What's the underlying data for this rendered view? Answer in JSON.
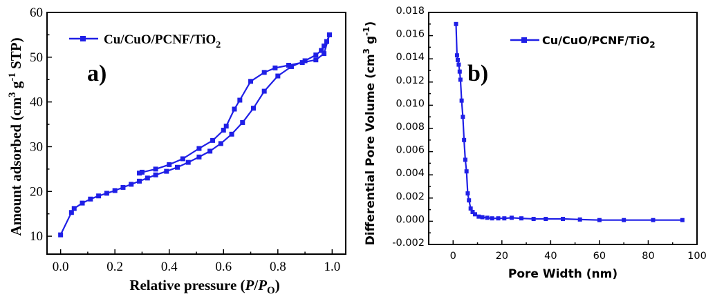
{
  "series_color": "#1f1fe6",
  "chart_data": [
    {
      "id": "a",
      "type": "line",
      "panel_label": "a)",
      "title": "",
      "xlabel": "Relative pressure (P/Po)",
      "xlabel_parts": [
        "Relative pressure (",
        "P",
        "/",
        "P",
        "O",
        ")"
      ],
      "ylabel": "Amount adsorbed (cm3 g-1 STP)",
      "ylabel_parts": [
        "Amount adsorbed (cm",
        "3",
        " g",
        "-1",
        " STP)"
      ],
      "xlim": [
        -0.05,
        1.05
      ],
      "ylim": [
        6,
        60
      ],
      "xticks": [
        "0.0",
        "0.2",
        "0.4",
        "0.6",
        "0.8",
        "1.0"
      ],
      "yticks": [
        "10",
        "20",
        "30",
        "40",
        "50",
        "60"
      ],
      "legend": {
        "label": "Cu/CuO/PCNF/TiO",
        "subscript": "2",
        "position": "top-left"
      },
      "series": [
        {
          "name": "Cu/CuO/PCNF/TiO2",
          "marker": "square",
          "x": [
            0.0,
            0.04,
            0.05,
            0.08,
            0.11,
            0.14,
            0.17,
            0.2,
            0.23,
            0.26,
            0.29,
            0.32,
            0.35,
            0.39,
            0.43,
            0.47,
            0.51,
            0.55,
            0.59,
            0.63,
            0.67,
            0.71,
            0.75,
            0.8,
            0.85,
            0.9,
            0.94,
            0.96,
            0.97,
            0.98,
            0.99,
            0.99,
            0.97,
            0.94,
            0.89,
            0.84,
            0.79,
            0.75,
            0.7,
            0.66,
            0.64,
            0.61,
            0.6,
            0.56,
            0.51,
            0.45,
            0.4,
            0.35,
            0.3,
            0.29
          ],
          "y": [
            10.3,
            15.3,
            16.2,
            17.4,
            18.3,
            19.0,
            19.6,
            20.2,
            20.9,
            21.6,
            22.3,
            23.0,
            23.7,
            24.5,
            25.4,
            26.5,
            27.7,
            29.0,
            30.7,
            32.8,
            35.4,
            38.6,
            42.4,
            45.8,
            47.9,
            49.2,
            50.5,
            51.5,
            52.5,
            53.5,
            55.0,
            55.0,
            50.8,
            49.4,
            48.8,
            48.2,
            47.6,
            46.6,
            44.6,
            40.4,
            38.4,
            34.6,
            33.7,
            31.4,
            29.6,
            27.3,
            26.0,
            25.0,
            24.3,
            24.1
          ]
        }
      ]
    },
    {
      "id": "b",
      "type": "line",
      "panel_label": "b)",
      "title": "",
      "xlabel": "Pore Width (nm)",
      "ylabel": "Differential Pore Volume (cm3 g-1)",
      "ylabel_parts": [
        "Differential Pore Volume (cm",
        "3",
        " g",
        "-1",
        ")"
      ],
      "xlim": [
        -10,
        100
      ],
      "ylim": [
        -0.002,
        0.018
      ],
      "xticks": [
        "0",
        "20",
        "40",
        "60",
        "80",
        "100"
      ],
      "yticks": [
        "-0.002",
        "0.000",
        "0.002",
        "0.004",
        "0.006",
        "0.008",
        "0.010",
        "0.012",
        "0.014",
        "0.016",
        "0.018"
      ],
      "legend": {
        "label": "Cu/CuO/PCNF/TiO",
        "subscript": "2",
        "position": "top-right"
      },
      "series": [
        {
          "name": "Cu/CuO/PCNF/TiO2",
          "marker": "square",
          "x": [
            1.2,
            1.6,
            1.9,
            2.3,
            2.7,
            3.0,
            3.5,
            4.0,
            4.5,
            5.0,
            5.5,
            6.0,
            6.5,
            7.2,
            8.0,
            9.0,
            10.5,
            12.0,
            14.0,
            16.0,
            18.5,
            21.0,
            24.0,
            28.0,
            33.0,
            38.0,
            45.0,
            52.0,
            60.0,
            70.0,
            82.0,
            94.0
          ],
          "y": [
            0.017,
            0.0143,
            0.0139,
            0.0135,
            0.0129,
            0.0122,
            0.0104,
            0.009,
            0.007,
            0.0053,
            0.0043,
            0.0024,
            0.0018,
            0.0011,
            0.0008,
            0.0006,
            0.0004,
            0.00035,
            0.0003,
            0.00025,
            0.00025,
            0.00025,
            0.0003,
            0.00025,
            0.0002,
            0.0002,
            0.0002,
            0.00015,
            0.0001,
            0.0001,
            0.0001,
            0.0001
          ]
        }
      ]
    }
  ]
}
